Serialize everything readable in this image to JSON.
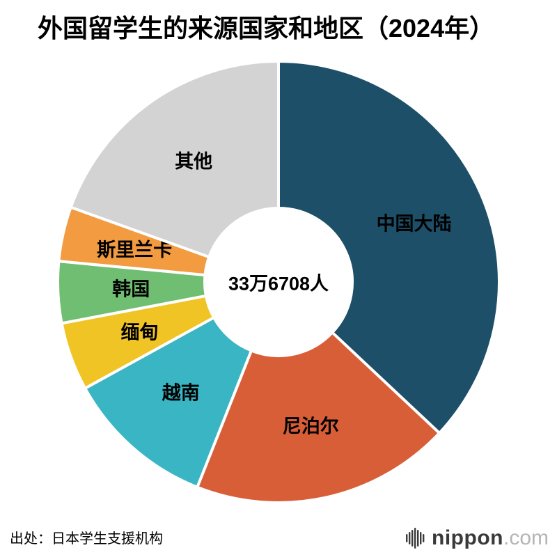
{
  "title": "外国留学生的来源国家和地区（2024年）",
  "center_total": "33万6708人",
  "source": "出处：日本学生支援机构",
  "logo": {
    "icon": "nippon-bars-icon",
    "name": "nippon",
    "tld": ".com"
  },
  "chart_data": {
    "type": "pie",
    "style": "donut",
    "title": "外国留学生的来源国家和地区（2024年）",
    "center_label": "33万6708人",
    "total_label": "33万6708人",
    "units": "percent_estimated_from_angles",
    "start_angle_deg": 0,
    "direction": "clockwise",
    "inner_radius_ratio": 0.33,
    "legend": "labels-inside-slices",
    "segments": [
      {
        "label": "中国大陆",
        "value": 37,
        "color": "#1d4f68"
      },
      {
        "label": "尼泊尔",
        "value": 19,
        "color": "#d85e38"
      },
      {
        "label": "越南",
        "value": 11,
        "color": "#39b5c4"
      },
      {
        "label": "缅甸",
        "value": 5,
        "color": "#f0c425"
      },
      {
        "label": "韩国",
        "value": 4.5,
        "color": "#6fbe72"
      },
      {
        "label": "斯里兰卡",
        "value": 4,
        "color": "#f29b41"
      },
      {
        "label": "其他",
        "value": 19.5,
        "color": "#d3d3d3"
      }
    ]
  }
}
